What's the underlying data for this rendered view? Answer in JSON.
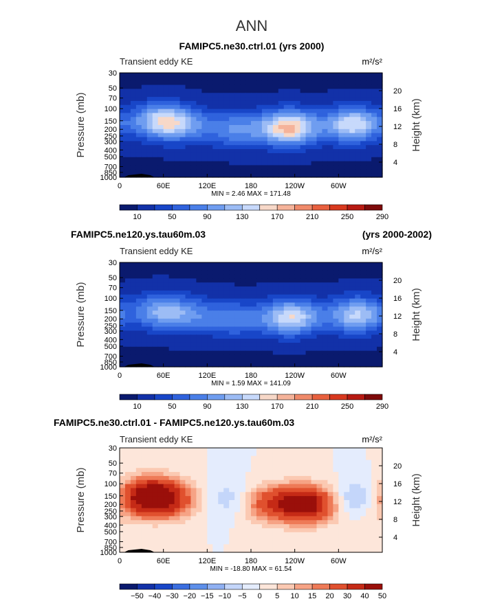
{
  "page_title": "ANN",
  "chart_data": [
    {
      "type": "contour",
      "title": "FAMIPC5.ne30.ctrl.01 (yrs 2000)",
      "title_right": "",
      "subtitle_left": "Transient eddy KE",
      "units": "m²/s²",
      "ylabel": "Pressure (mb)",
      "ylabel_right": "Height (km)",
      "xticks": [
        "0",
        "60E",
        "120E",
        "180",
        "120W",
        "60W"
      ],
      "yticks": [
        "30",
        "50",
        "70",
        "100",
        "150",
        "200",
        "250",
        "300",
        "400",
        "500",
        "700",
        "850",
        "1000"
      ],
      "yticks_right": [
        "20",
        "16",
        "12",
        "8",
        "4"
      ],
      "stats": "MIN =    2.46   MAX = 171.48",
      "colorbar_labels": [
        "10",
        "50",
        "90",
        "130",
        "170",
        "210",
        "250",
        "290"
      ],
      "min": 2.46,
      "max": 171.48,
      "blobs": [
        {
          "lon": 55,
          "p": 150,
          "value": 120
        },
        {
          "lon": 90,
          "p": 175,
          "value": 70
        },
        {
          "lon": 160,
          "p": 200,
          "value": 80
        },
        {
          "lon": 232,
          "p": 190,
          "value": 168
        },
        {
          "lon": 320,
          "p": 170,
          "value": 140
        }
      ]
    },
    {
      "type": "contour",
      "title": "FAMIPC5.ne120.ys.tau60m.03",
      "title_right": "(yrs 2000-2002)",
      "subtitle_left": "Transient eddy KE",
      "units": "m²/s²",
      "ylabel": "Pressure (mb)",
      "ylabel_right": "Height (km)",
      "xticks": [
        "0",
        "60E",
        "120E",
        "180",
        "120W",
        "60W"
      ],
      "yticks": [
        "30",
        "50",
        "70",
        "100",
        "150",
        "200",
        "250",
        "300",
        "400",
        "500",
        "700",
        "850",
        "1000"
      ],
      "yticks_right": [
        "20",
        "16",
        "12",
        "8",
        "4"
      ],
      "stats": "MIN =    1.59   MAX = 141.09",
      "colorbar_labels": [
        "10",
        "50",
        "90",
        "130",
        "170",
        "210",
        "250",
        "290"
      ],
      "min": 1.59,
      "max": 141.09,
      "blobs": [
        {
          "lon": 55,
          "p": 155,
          "value": 95
        },
        {
          "lon": 100,
          "p": 180,
          "value": 60
        },
        {
          "lon": 160,
          "p": 200,
          "value": 70
        },
        {
          "lon": 235,
          "p": 190,
          "value": 140
        },
        {
          "lon": 325,
          "p": 175,
          "value": 125
        }
      ]
    },
    {
      "type": "contour-difference",
      "title": "FAMIPC5.ne30.ctrl.01 - FAMIPC5.ne120.ys.tau60m.03",
      "title_right": "",
      "subtitle_left": "Transient eddy KE",
      "units": "m²/s²",
      "ylabel": "Pressure (mb)",
      "ylabel_right": "Height (km)",
      "xticks": [
        "0",
        "60E",
        "120E",
        "180",
        "120W",
        "60W"
      ],
      "yticks": [
        "30",
        "50",
        "70",
        "100",
        "150",
        "200",
        "250",
        "300",
        "400",
        "500",
        "700",
        "850",
        "1000"
      ],
      "yticks_right": [
        "20",
        "16",
        "12",
        "8",
        "4"
      ],
      "stats": "MIN =  -18.80   MAX =   61.54",
      "colorbar_labels": [
        "−50",
        "−40",
        "−30",
        "−20",
        "−15",
        "−10",
        "−5",
        "0",
        "5",
        "10",
        "15",
        "20",
        "30",
        "40",
        "50"
      ],
      "min": -18.8,
      "max": 61.54,
      "blobs": [
        {
          "lon": 40,
          "p": 150,
          "value": 45
        },
        {
          "lon": 65,
          "p": 175,
          "value": 25
        },
        {
          "lon": 160,
          "p": 170,
          "value": -12
        },
        {
          "lon": 200,
          "p": 190,
          "value": 25
        },
        {
          "lon": 255,
          "p": 200,
          "value": 50
        },
        {
          "lon": 330,
          "p": 175,
          "value": -18
        },
        {
          "lon": 350,
          "p": 220,
          "value": 10
        }
      ]
    }
  ]
}
